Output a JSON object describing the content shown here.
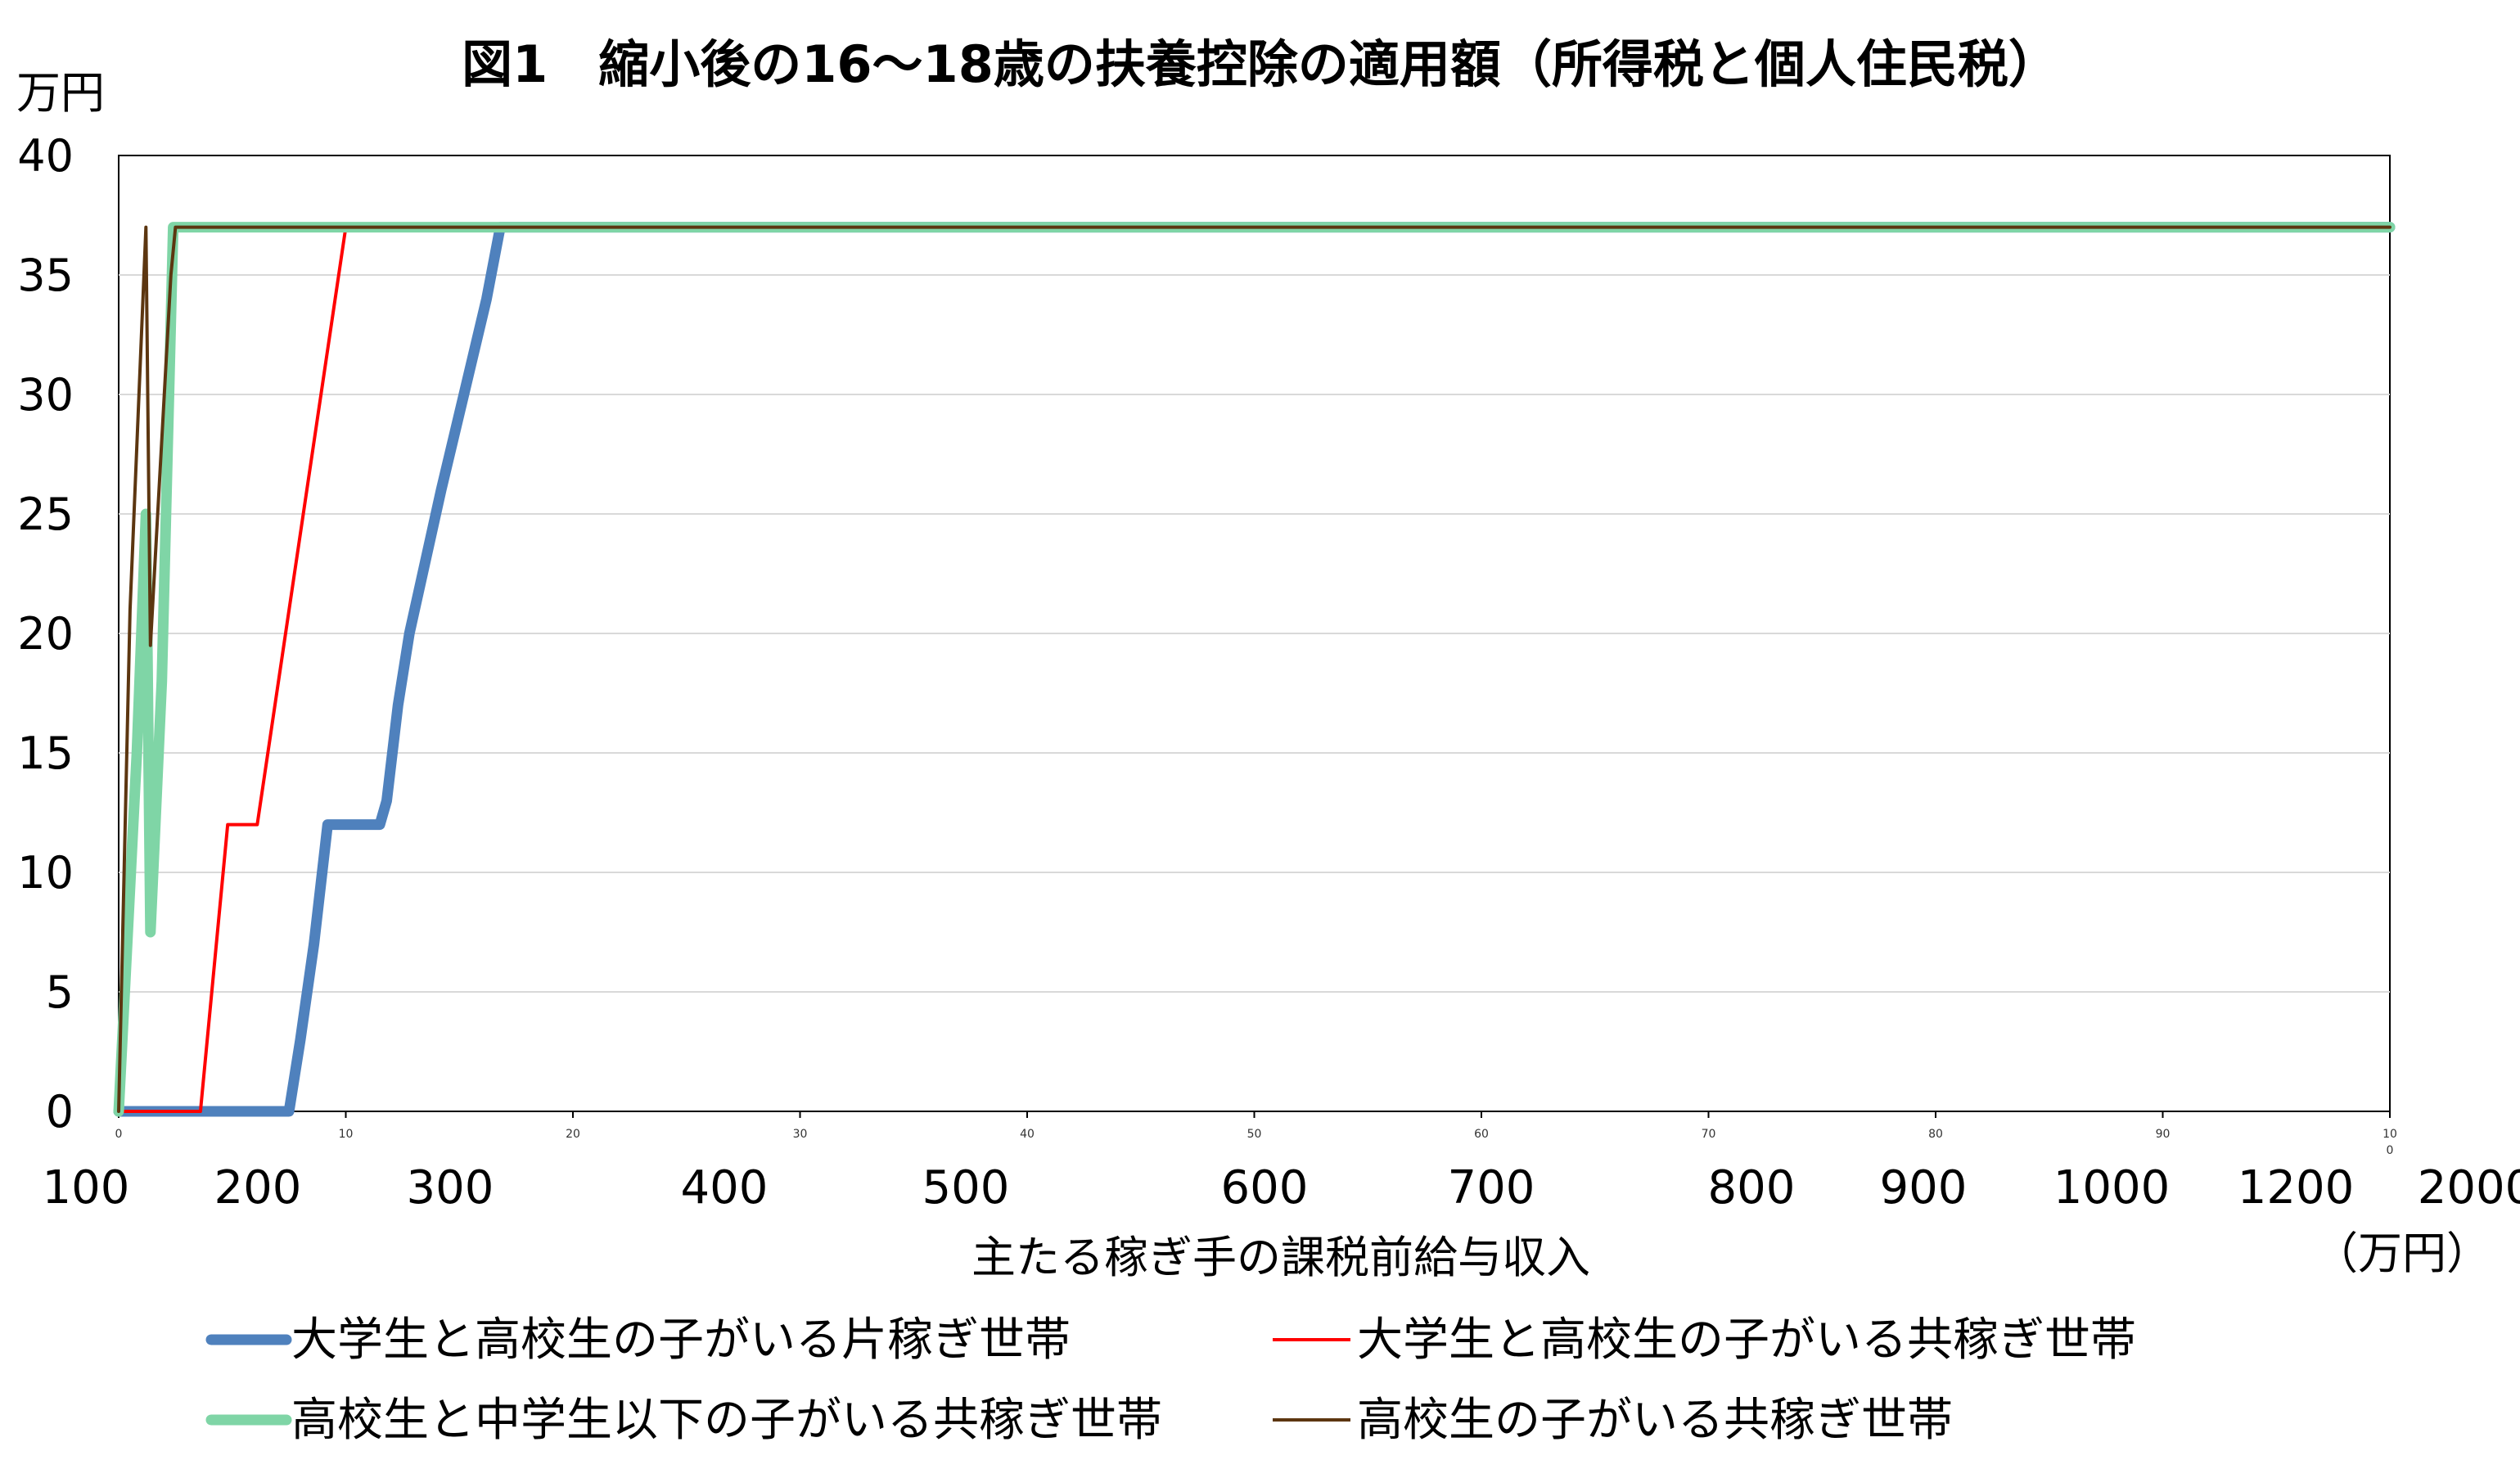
{
  "chart_data": {
    "type": "line",
    "title": "図1　縮小後の16～18歳の扶養控除の適用額（所得税と個人住民税）",
    "ylabel": "万円",
    "xlabel": "主たる稼ぎ手の課税前給与収入",
    "xunit": "（万円）",
    "ylim": [
      0,
      40
    ],
    "yticks": [
      "0",
      "5",
      "10",
      "15",
      "20",
      "25",
      "30",
      "35",
      "40"
    ],
    "xlim": [
      0,
      100
    ],
    "xticks_small": [
      "0",
      "10",
      "20",
      "30",
      "40",
      "50",
      "60",
      "70",
      "80",
      "90",
      "10"
    ],
    "xticks_small_extra": "0",
    "xticks_big": [
      "100",
      "200",
      "300",
      "400",
      "500",
      "600",
      "700",
      "800",
      "900",
      "1000",
      "1200",
      "2000"
    ],
    "grid": true,
    "legend_position": "bottom",
    "series": [
      {
        "name": "大学生と高校生の子がいる片稼ぎ世帯",
        "color": "#4F81BD",
        "points": [
          [
            0,
            0
          ],
          [
            7.5,
            0
          ],
          [
            8,
            3
          ],
          [
            8.6,
            7
          ],
          [
            9.2,
            12
          ],
          [
            11.5,
            12
          ],
          [
            11.8,
            13
          ],
          [
            12.3,
            17
          ],
          [
            12.8,
            20
          ],
          [
            13.5,
            23
          ],
          [
            14.2,
            26
          ],
          [
            15.2,
            30
          ],
          [
            16.2,
            34
          ],
          [
            16.8,
            37
          ],
          [
            100,
            37
          ]
        ]
      },
      {
        "name": "大学生と高校生の子がいる共稼ぎ世帯",
        "color": "#FF0000",
        "points": [
          [
            0,
            0
          ],
          [
            3.6,
            0
          ],
          [
            4.8,
            12
          ],
          [
            6.1,
            12
          ],
          [
            10,
            37
          ],
          [
            100,
            37
          ]
        ]
      },
      {
        "name": "高校生と中学生以下の子がいる共稼ぎ世帯",
        "color": "#7FD5A6",
        "points": [
          [
            0,
            0
          ],
          [
            0.8,
            15
          ],
          [
            1.2,
            25
          ],
          [
            1.4,
            7.5
          ],
          [
            1.9,
            18
          ],
          [
            2.4,
            37
          ],
          [
            100,
            37
          ]
        ]
      },
      {
        "name": "高校生の子がいる共稼ぎ世帯",
        "color": "#5C3610",
        "points": [
          [
            0,
            0
          ],
          [
            0.5,
            21
          ],
          [
            1.2,
            37
          ],
          [
            1.4,
            19.5
          ],
          [
            2.3,
            35
          ],
          [
            2.5,
            37
          ],
          [
            100,
            37
          ]
        ]
      }
    ]
  }
}
